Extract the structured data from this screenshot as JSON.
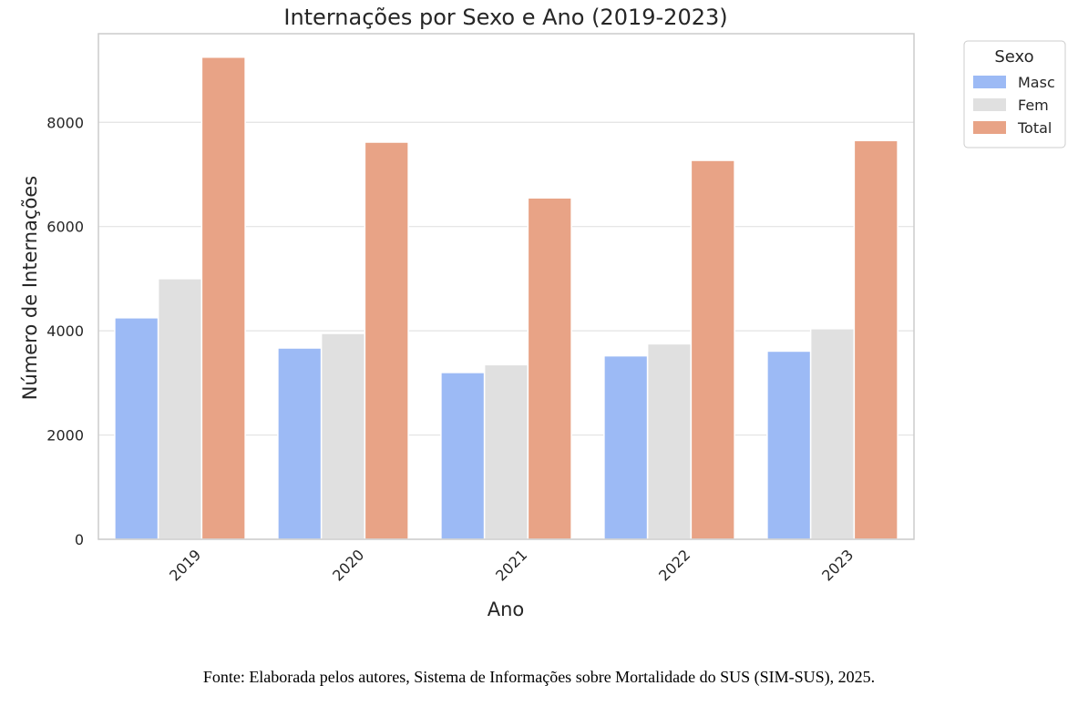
{
  "chart_data": {
    "type": "bar",
    "title": "Internações por Sexo e Ano (2019-2023)",
    "xlabel": "Ano",
    "ylabel": "Número de Internações",
    "categories": [
      "2019",
      "2020",
      "2021",
      "2022",
      "2023"
    ],
    "series": [
      {
        "name": "Masc",
        "values": [
          4250,
          3670,
          3200,
          3520,
          3610
        ],
        "color": "#9cbaf5"
      },
      {
        "name": "Fem",
        "values": [
          5000,
          3950,
          3350,
          3750,
          4040
        ],
        "color": "#e0e0e0"
      },
      {
        "name": "Total",
        "values": [
          9250,
          7620,
          6550,
          7270,
          7650
        ],
        "color": "#e8a386"
      }
    ],
    "ylim": [
      0,
      9700
    ],
    "yticks": [
      0,
      2000,
      4000,
      6000,
      8000
    ],
    "grid": true,
    "legend": {
      "title": "Sexo",
      "placement": "outside-top-right"
    }
  },
  "caption": "Fonte: Elaborada pelos autores, Sistema de Informações sobre Mortalidade do SUS (SIM-SUS), 2025."
}
